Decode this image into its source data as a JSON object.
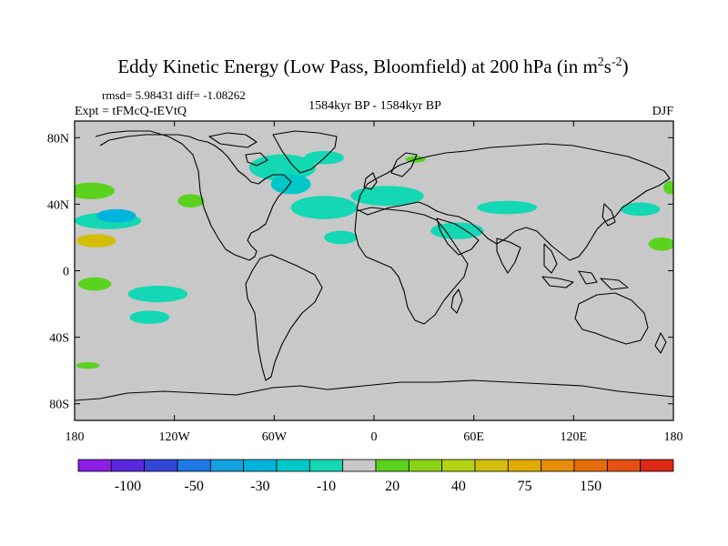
{
  "chart_data": {
    "type": "heatmap",
    "title_main": "Eddy Kinetic Energy (Low Pass, Bloomfield) at 200 hPa (in m",
    "title_sup1": "2",
    "title_mid": "s",
    "title_sup2": "-2",
    "title_end": ")",
    "stats": "rmsd= 5.98431 diff= -1.08262",
    "experiment": "Expt = tFMcQ-tEVtQ",
    "period": "1584kyr BP - 1584kyr BP",
    "season": "DJF",
    "x_ticks": [
      "180",
      "120W",
      "60W",
      "0",
      "60E",
      "120E",
      "180"
    ],
    "x_tick_values": [
      -180,
      -120,
      -60,
      0,
      60,
      120,
      180
    ],
    "y_ticks": [
      "80N",
      "40N",
      "0",
      "40S",
      "80S"
    ],
    "y_tick_values": [
      80,
      40,
      0,
      -40,
      -80
    ],
    "xlim": [
      -180,
      180
    ],
    "ylim": [
      -90,
      90
    ],
    "colorbar": {
      "colors": [
        "#8c1ee6",
        "#5a28dc",
        "#3246d7",
        "#1e78e6",
        "#14a0e1",
        "#00b4dc",
        "#00c8c8",
        "#14d7b4",
        "#c8c8c8",
        "#5ad21e",
        "#8cd214",
        "#b4d214",
        "#d2be0a",
        "#e1aa00",
        "#e68c0a",
        "#e66e0a",
        "#e65014",
        "#dc2814"
      ],
      "labels": [
        "-100",
        "-50",
        "-30",
        "-10",
        "20",
        "40",
        "75",
        "150"
      ],
      "label_after_box": [
        2,
        4,
        6,
        8,
        10,
        12,
        14,
        16
      ]
    },
    "anomaly_regions": [
      {
        "lon": -170,
        "lat": 48,
        "rx": 14,
        "ry": 5,
        "value": 15
      },
      {
        "lon": -160,
        "lat": 30,
        "rx": 20,
        "ry": 5,
        "value": -20
      },
      {
        "lon": -167,
        "lat": 18,
        "rx": 12,
        "ry": 4,
        "value": 45
      },
      {
        "lon": -155,
        "lat": 33,
        "rx": 12,
        "ry": 4,
        "value": -35
      },
      {
        "lon": -110,
        "lat": 42,
        "rx": 8,
        "ry": 4,
        "value": 15
      },
      {
        "lon": -168,
        "lat": -8,
        "rx": 10,
        "ry": 4,
        "value": 15
      },
      {
        "lon": -130,
        "lat": -14,
        "rx": 18,
        "ry": 5,
        "value": -15
      },
      {
        "lon": -135,
        "lat": -28,
        "rx": 12,
        "ry": 4,
        "value": -15
      },
      {
        "lon": -172,
        "lat": -57,
        "rx": 7,
        "ry": 2,
        "value": 15
      },
      {
        "lon": -55,
        "lat": 62,
        "rx": 20,
        "ry": 8,
        "value": -15
      },
      {
        "lon": -50,
        "lat": 52,
        "rx": 12,
        "ry": 6,
        "value": -30
      },
      {
        "lon": -30,
        "lat": 38,
        "rx": 20,
        "ry": 7,
        "value": -15
      },
      {
        "lon": -30,
        "lat": 68,
        "rx": 12,
        "ry": 4,
        "value": -15
      },
      {
        "lon": 8,
        "lat": 45,
        "rx": 22,
        "ry": 6,
        "value": -15
      },
      {
        "lon": -20,
        "lat": 20,
        "rx": 10,
        "ry": 4,
        "value": -15
      },
      {
        "lon": 25,
        "lat": 67,
        "rx": 6,
        "ry": 2,
        "value": 15
      },
      {
        "lon": 50,
        "lat": 24,
        "rx": 16,
        "ry": 5,
        "value": -15
      },
      {
        "lon": 80,
        "lat": 38,
        "rx": 18,
        "ry": 4,
        "value": -15
      },
      {
        "lon": 160,
        "lat": 37,
        "rx": 12,
        "ry": 4,
        "value": -15
      },
      {
        "lon": 173,
        "lat": 16,
        "rx": 8,
        "ry": 4,
        "value": 15
      },
      {
        "lon": 178,
        "lat": 50,
        "rx": 4,
        "ry": 4,
        "value": 15
      }
    ]
  }
}
